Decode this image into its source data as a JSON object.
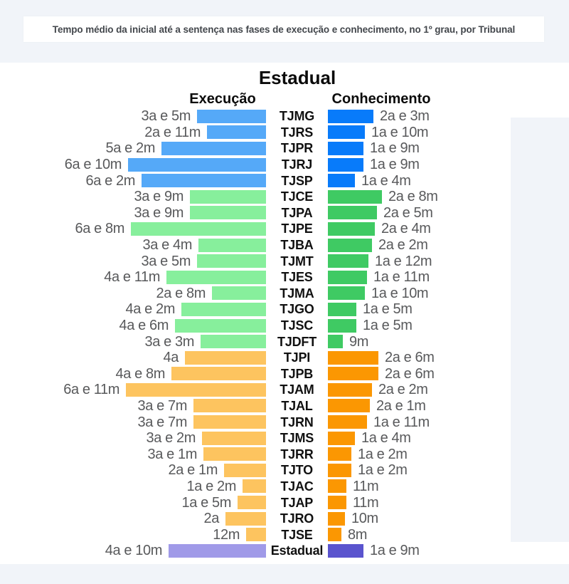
{
  "page_header": "Tempo médio da inicial até a sentença nas fases de execução e conhecimento, no 1º grau, por Tribunal",
  "colors": {
    "background": "#f1f4f9",
    "panel": "#ffffff",
    "header_text": "#43474c",
    "value_text": "#58595b",
    "court_text": "#111111",
    "groups": {
      "blue": {
        "left": "#55a9f8",
        "right": "#087bfa"
      },
      "green": {
        "left": "#87ef9c",
        "right": "#3fca63"
      },
      "orange": {
        "left": "#fdc45f",
        "right": "#fb9702"
      },
      "purple": {
        "left": "#a09ae8",
        "right": "#5a54ce"
      }
    }
  },
  "chart_data": {
    "type": "bar",
    "orientation": "bidirectional-horizontal",
    "title": "Estadual",
    "left_header": "Execução",
    "right_header": "Conhecimento",
    "units": "months (labels shown as anos 'a' e meses 'm')",
    "series": [
      {
        "name": "Execução",
        "side": "left"
      },
      {
        "name": "Conhecimento",
        "side": "right"
      }
    ],
    "rows": [
      {
        "court": "TJMG",
        "group": "blue",
        "execucao_label": "3a e 5m",
        "execucao_months": 41,
        "conhecimento_label": "2a e 3m",
        "conhecimento_months": 27
      },
      {
        "court": "TJRS",
        "group": "blue",
        "execucao_label": "2a e 11m",
        "execucao_months": 35,
        "conhecimento_label": "1a e 10m",
        "conhecimento_months": 22
      },
      {
        "court": "TJPR",
        "group": "blue",
        "execucao_label": "5a e 2m",
        "execucao_months": 62,
        "conhecimento_label": "1a e 9m",
        "conhecimento_months": 21
      },
      {
        "court": "TJRJ",
        "group": "blue",
        "execucao_label": "6a e 10m",
        "execucao_months": 82,
        "conhecimento_label": "1a e 9m",
        "conhecimento_months": 21
      },
      {
        "court": "TJSP",
        "group": "blue",
        "execucao_label": "6a e 2m",
        "execucao_months": 74,
        "conhecimento_label": "1a e 4m",
        "conhecimento_months": 16
      },
      {
        "court": "TJCE",
        "group": "green",
        "execucao_label": "3a e 9m",
        "execucao_months": 45,
        "conhecimento_label": "2a e 8m",
        "conhecimento_months": 32
      },
      {
        "court": "TJPA",
        "group": "green",
        "execucao_label": "3a e 9m",
        "execucao_months": 45,
        "conhecimento_label": "2a e 5m",
        "conhecimento_months": 29
      },
      {
        "court": "TJPE",
        "group": "green",
        "execucao_label": "6a e 8m",
        "execucao_months": 80,
        "conhecimento_label": "2a e 4m",
        "conhecimento_months": 28
      },
      {
        "court": "TJBA",
        "group": "green",
        "execucao_label": "3a e 4m",
        "execucao_months": 40,
        "conhecimento_label": "2a e 2m",
        "conhecimento_months": 26
      },
      {
        "court": "TJMT",
        "group": "green",
        "execucao_label": "3a e 5m",
        "execucao_months": 41,
        "conhecimento_label": "1a e 12m",
        "conhecimento_months": 24
      },
      {
        "court": "TJES",
        "group": "green",
        "execucao_label": "4a e 11m",
        "execucao_months": 59,
        "conhecimento_label": "1a e 11m",
        "conhecimento_months": 23
      },
      {
        "court": "TJMA",
        "group": "green",
        "execucao_label": "2a e 8m",
        "execucao_months": 32,
        "conhecimento_label": "1a e 10m",
        "conhecimento_months": 22
      },
      {
        "court": "TJGO",
        "group": "green",
        "execucao_label": "4a e 2m",
        "execucao_months": 50,
        "conhecimento_label": "1a e 5m",
        "conhecimento_months": 17
      },
      {
        "court": "TJSC",
        "group": "green",
        "execucao_label": "4a e 6m",
        "execucao_months": 54,
        "conhecimento_label": "1a e 5m",
        "conhecimento_months": 17
      },
      {
        "court": "TJDFT",
        "group": "green",
        "execucao_label": "3a e 3m",
        "execucao_months": 39,
        "conhecimento_label": "9m",
        "conhecimento_months": 9
      },
      {
        "court": "TJPI",
        "group": "orange",
        "execucao_label": "4a",
        "execucao_months": 48,
        "conhecimento_label": "2a e 6m",
        "conhecimento_months": 30
      },
      {
        "court": "TJPB",
        "group": "orange",
        "execucao_label": "4a e 8m",
        "execucao_months": 56,
        "conhecimento_label": "2a e 6m",
        "conhecimento_months": 30
      },
      {
        "court": "TJAM",
        "group": "orange",
        "execucao_label": "6a e 11m",
        "execucao_months": 83,
        "conhecimento_label": "2a e 2m",
        "conhecimento_months": 26
      },
      {
        "court": "TJAL",
        "group": "orange",
        "execucao_label": "3a e 7m",
        "execucao_months": 43,
        "conhecimento_label": "2a e 1m",
        "conhecimento_months": 25
      },
      {
        "court": "TJRN",
        "group": "orange",
        "execucao_label": "3a e 7m",
        "execucao_months": 43,
        "conhecimento_label": "1a e 11m",
        "conhecimento_months": 23
      },
      {
        "court": "TJMS",
        "group": "orange",
        "execucao_label": "3a e 2m",
        "execucao_months": 38,
        "conhecimento_label": "1a e 4m",
        "conhecimento_months": 16
      },
      {
        "court": "TJRR",
        "group": "orange",
        "execucao_label": "3a e 1m",
        "execucao_months": 37,
        "conhecimento_label": "1a e 2m",
        "conhecimento_months": 14
      },
      {
        "court": "TJTO",
        "group": "orange",
        "execucao_label": "2a e 1m",
        "execucao_months": 25,
        "conhecimento_label": "1a e 2m",
        "conhecimento_months": 14
      },
      {
        "court": "TJAC",
        "group": "orange",
        "execucao_label": "1a e 2m",
        "execucao_months": 14,
        "conhecimento_label": "11m",
        "conhecimento_months": 11
      },
      {
        "court": "TJAP",
        "group": "orange",
        "execucao_label": "1a e 5m",
        "execucao_months": 17,
        "conhecimento_label": "11m",
        "conhecimento_months": 11
      },
      {
        "court": "TJRO",
        "group": "orange",
        "execucao_label": "2a",
        "execucao_months": 24,
        "conhecimento_label": "10m",
        "conhecimento_months": 10
      },
      {
        "court": "TJSE",
        "group": "orange",
        "execucao_label": "12m",
        "execucao_months": 12,
        "conhecimento_label": "8m",
        "conhecimento_months": 8
      },
      {
        "court": "Estadual",
        "group": "purple",
        "execucao_label": "4a e 10m",
        "execucao_months": 58,
        "conhecimento_label": "1a e 9m",
        "conhecimento_months": 21
      }
    ]
  }
}
